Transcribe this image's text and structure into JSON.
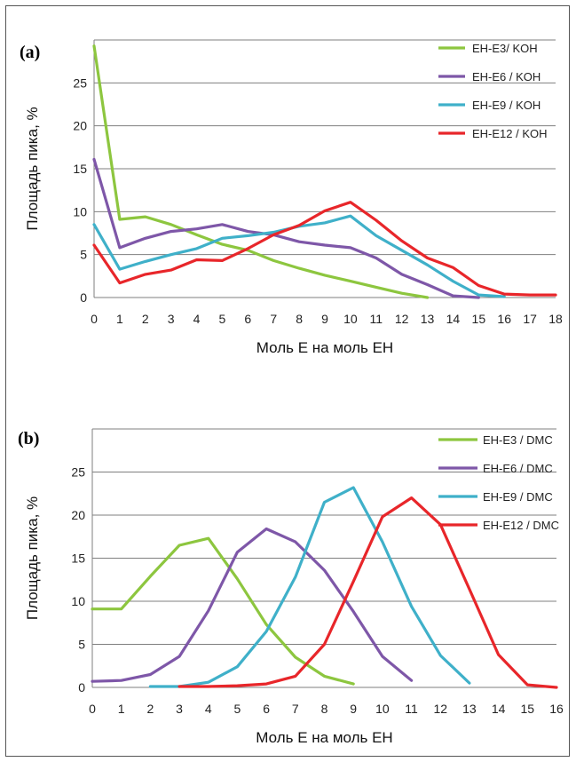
{
  "chart_data": [
    {
      "type": "line",
      "panel_label": "(a)",
      "title": "",
      "xlabel": "Моль Е на моль ЕН",
      "ylabel": "Площадь пика, %",
      "xlim": [
        0,
        18
      ],
      "ylim": [
        0,
        30
      ],
      "yticks": [
        0,
        5,
        10,
        15,
        20,
        25
      ],
      "xticks": [
        0,
        1,
        2,
        3,
        4,
        5,
        6,
        7,
        8,
        9,
        10,
        11,
        12,
        13,
        14,
        15,
        16,
        17,
        18
      ],
      "grid": "horizontal",
      "legend_position": "top-right",
      "series": [
        {
          "name": "EH-E3/ KOH",
          "color": "#8dc63f",
          "x": [
            0,
            1,
            2,
            3,
            4,
            5,
            6,
            7,
            8,
            9,
            10,
            11,
            12,
            13
          ],
          "y": [
            29.3,
            9.1,
            9.4,
            8.5,
            7.3,
            6.2,
            5.5,
            4.3,
            3.4,
            2.6,
            1.9,
            1.2,
            0.5,
            0.0
          ]
        },
        {
          "name": "EH-E6 / KOH",
          "color": "#7e57a8",
          "x": [
            0,
            1,
            2,
            3,
            4,
            5,
            6,
            7,
            8,
            9,
            10,
            11,
            12,
            13,
            14,
            15
          ],
          "y": [
            16.1,
            5.8,
            6.9,
            7.7,
            8.0,
            8.5,
            7.7,
            7.3,
            6.5,
            6.1,
            5.8,
            4.6,
            2.7,
            1.5,
            0.2,
            0.0
          ]
        },
        {
          "name": "EH-E9 / KOH",
          "color": "#3fb0c9",
          "x": [
            0,
            1,
            2,
            3,
            4,
            5,
            6,
            7,
            8,
            9,
            10,
            11,
            12,
            13,
            14,
            15,
            16
          ],
          "y": [
            8.5,
            3.3,
            4.2,
            5.0,
            5.7,
            6.9,
            7.2,
            7.6,
            8.3,
            8.7,
            9.5,
            7.2,
            5.5,
            3.8,
            1.9,
            0.3,
            0.1
          ]
        },
        {
          "name": "EH-E12 / KOH",
          "color": "#e8262a",
          "x": [
            0,
            1,
            2,
            3,
            4,
            5,
            6,
            7,
            8,
            9,
            10,
            11,
            12,
            13,
            14,
            15,
            16,
            17,
            18
          ],
          "y": [
            6.1,
            1.7,
            2.7,
            3.2,
            4.4,
            4.3,
            5.7,
            7.3,
            8.4,
            10.1,
            11.1,
            9.0,
            6.6,
            4.6,
            3.5,
            1.4,
            0.4,
            0.3,
            0.3
          ]
        }
      ]
    },
    {
      "type": "line",
      "panel_label": "(b)",
      "title": "",
      "xlabel": "Моль Е на моль ЕН",
      "ylabel": "Площадь пика, %",
      "xlim": [
        0,
        16
      ],
      "ylim": [
        0,
        30
      ],
      "yticks": [
        0,
        5,
        10,
        15,
        20,
        25
      ],
      "xticks": [
        0,
        1,
        2,
        3,
        4,
        5,
        6,
        7,
        8,
        9,
        10,
        11,
        12,
        13,
        14,
        15,
        16
      ],
      "grid": "horizontal",
      "legend_position": "top-right",
      "series": [
        {
          "name": "EH-E3 / DMC",
          "color": "#8dc63f",
          "x": [
            0,
            1,
            2,
            3,
            4,
            5,
            6,
            7,
            8,
            9
          ],
          "y": [
            9.1,
            9.1,
            12.9,
            16.5,
            17.3,
            12.6,
            7.3,
            3.5,
            1.3,
            0.4
          ]
        },
        {
          "name": "EH-E6 / DMC",
          "color": "#7e57a8",
          "x": [
            0,
            1,
            2,
            3,
            4,
            5,
            6,
            7,
            8,
            9,
            10,
            11
          ],
          "y": [
            0.7,
            0.8,
            1.5,
            3.6,
            8.9,
            15.7,
            18.4,
            16.9,
            13.6,
            8.8,
            3.6,
            0.8
          ]
        },
        {
          "name": "EH-E9 / DMC",
          "color": "#3fb0c9",
          "x": [
            2,
            3,
            4,
            5,
            6,
            7,
            8,
            9,
            10,
            11,
            12,
            13
          ],
          "y": [
            0.1,
            0.1,
            0.6,
            2.4,
            6.5,
            12.8,
            21.5,
            23.2,
            16.9,
            9.4,
            3.7,
            0.5
          ]
        },
        {
          "name": "EH-E12 / DMC",
          "color": "#e8262a",
          "x": [
            3,
            4,
            5,
            6,
            7,
            8,
            9,
            10,
            11,
            12,
            13,
            14,
            15,
            16
          ],
          "y": [
            0.1,
            0.1,
            0.2,
            0.4,
            1.3,
            5.0,
            12.3,
            19.8,
            22.0,
            18.9,
            11.4,
            3.8,
            0.3,
            0.0
          ]
        }
      ]
    }
  ]
}
